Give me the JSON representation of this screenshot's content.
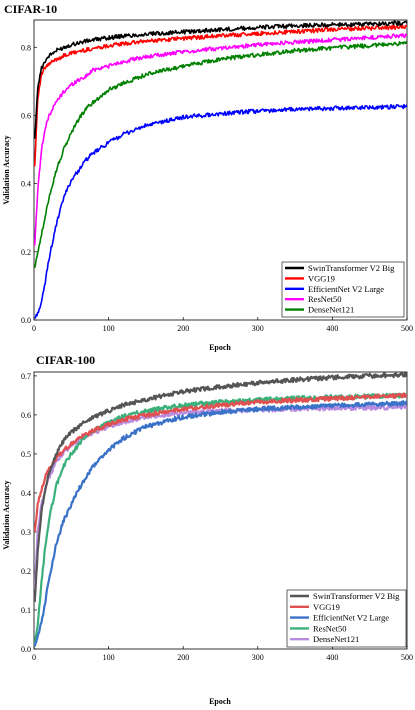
{
  "chart_data": [
    {
      "type": "line",
      "title": "CIFAR-10",
      "xlabel": "Epoch",
      "ylabel": "Validation Accuracy",
      "xlim": [
        0,
        500
      ],
      "ylim": [
        0,
        0.88
      ],
      "xticks": [
        0,
        100,
        200,
        300,
        400,
        500
      ],
      "yticks": [
        0.0,
        0.2,
        0.4,
        0.6,
        0.8
      ],
      "ytick_labels": [
        "0.0",
        "0.2",
        "0.4",
        "0.6",
        "0.8"
      ],
      "legend_position": "lower-right",
      "x": [
        1,
        5,
        10,
        15,
        20,
        30,
        40,
        50,
        60,
        70,
        80,
        100,
        120,
        150,
        200,
        250,
        300,
        350,
        400,
        450,
        500
      ],
      "series": [
        {
          "name": "SwinTransformer V2 Big",
          "color": "#000000",
          "values": [
            0.53,
            0.68,
            0.74,
            0.76,
            0.775,
            0.79,
            0.8,
            0.808,
            0.813,
            0.818,
            0.822,
            0.828,
            0.833,
            0.838,
            0.845,
            0.852,
            0.858,
            0.863,
            0.866,
            0.868,
            0.872
          ]
        },
        {
          "name": "VGG19",
          "color": "#ff0000",
          "values": [
            0.45,
            0.65,
            0.72,
            0.74,
            0.75,
            0.765,
            0.775,
            0.782,
            0.788,
            0.792,
            0.797,
            0.805,
            0.81,
            0.818,
            0.826,
            0.834,
            0.84,
            0.846,
            0.852,
            0.856,
            0.86
          ]
        },
        {
          "name": "EfficientNet V2 Large",
          "color": "#0000ff",
          "values": [
            0.005,
            0.02,
            0.05,
            0.11,
            0.18,
            0.28,
            0.36,
            0.41,
            0.44,
            0.47,
            0.49,
            0.52,
            0.545,
            0.57,
            0.595,
            0.605,
            0.613,
            0.618,
            0.621,
            0.624,
            0.626
          ]
        },
        {
          "name": "ResNet50",
          "color": "#ff00ff",
          "values": [
            0.22,
            0.38,
            0.5,
            0.56,
            0.6,
            0.64,
            0.67,
            0.69,
            0.705,
            0.715,
            0.735,
            0.745,
            0.758,
            0.772,
            0.786,
            0.798,
            0.807,
            0.815,
            0.822,
            0.828,
            0.835
          ]
        },
        {
          "name": "DenseNet121",
          "color": "#008000",
          "values": [
            0.15,
            0.2,
            0.25,
            0.3,
            0.36,
            0.44,
            0.5,
            0.55,
            0.59,
            0.62,
            0.64,
            0.675,
            0.695,
            0.72,
            0.745,
            0.765,
            0.778,
            0.79,
            0.798,
            0.805,
            0.812
          ]
        }
      ]
    },
    {
      "type": "line",
      "title": "CIFAR-100",
      "xlabel": "Epoch",
      "ylabel": "Validation Accuracy",
      "xlim": [
        0,
        500
      ],
      "ylim": [
        0,
        0.71
      ],
      "xticks": [
        0,
        100,
        200,
        300,
        400,
        500
      ],
      "yticks": [
        0.0,
        0.1,
        0.2,
        0.3,
        0.4,
        0.5,
        0.6,
        0.7
      ],
      "ytick_labels": [
        "0.0",
        "0.1",
        "0.2",
        "0.3",
        "0.4",
        "0.5",
        "0.6",
        "0.7"
      ],
      "legend_position": "lower-right",
      "x": [
        1,
        5,
        10,
        15,
        20,
        30,
        40,
        50,
        60,
        70,
        80,
        100,
        120,
        150,
        200,
        250,
        300,
        350,
        400,
        450,
        500
      ],
      "series": [
        {
          "name": "SwinTransformer V2 Big",
          "color": "#555555",
          "values": [
            0.12,
            0.25,
            0.35,
            0.41,
            0.45,
            0.5,
            0.535,
            0.555,
            0.57,
            0.585,
            0.595,
            0.61,
            0.625,
            0.64,
            0.66,
            0.672,
            0.682,
            0.69,
            0.696,
            0.7,
            0.703
          ]
        },
        {
          "name": "VGG19",
          "color": "#e05050",
          "values": [
            0.3,
            0.37,
            0.41,
            0.44,
            0.46,
            0.49,
            0.51,
            0.525,
            0.54,
            0.55,
            0.56,
            0.575,
            0.588,
            0.6,
            0.615,
            0.625,
            0.632,
            0.638,
            0.642,
            0.646,
            0.65
          ]
        },
        {
          "name": "EfficientNet V2 Large",
          "color": "#3a72c8",
          "values": [
            0.01,
            0.03,
            0.07,
            0.12,
            0.18,
            0.27,
            0.33,
            0.37,
            0.41,
            0.44,
            0.47,
            0.51,
            0.54,
            0.57,
            0.595,
            0.607,
            0.615,
            0.62,
            0.624,
            0.627,
            0.63
          ]
        },
        {
          "name": "ResNet50",
          "color": "#3cb07a",
          "values": [
            0.01,
            0.06,
            0.17,
            0.26,
            0.33,
            0.42,
            0.47,
            0.5,
            0.525,
            0.545,
            0.56,
            0.58,
            0.596,
            0.61,
            0.625,
            0.633,
            0.638,
            0.643,
            0.646,
            0.648,
            0.65
          ]
        },
        {
          "name": "DenseNet121",
          "color": "#b88ae0",
          "values": [
            0.15,
            0.3,
            0.37,
            0.41,
            0.44,
            0.48,
            0.505,
            0.52,
            0.535,
            0.545,
            0.555,
            0.57,
            0.582,
            0.595,
            0.605,
            0.61,
            0.613,
            0.615,
            0.617,
            0.618,
            0.62
          ]
        }
      ]
    }
  ]
}
